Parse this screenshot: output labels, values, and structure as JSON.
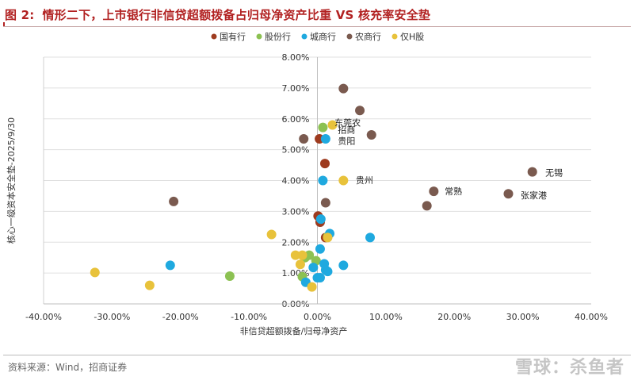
{
  "header": {
    "figure_num": "图 2:",
    "title": "情形二下，上市银行非信贷超额拨备占归母净资产比重 VS 核充率安全垫"
  },
  "footer": {
    "source": "资料来源：Wind，招商证券",
    "watermark": "雪球：杀鱼者"
  },
  "chart_data": {
    "type": "scatter",
    "title": "情形二下，上市银行非信贷超额拨备占归母净资产比重 VS 核充率安全垫",
    "xlabel": "非信贷超额拨备/归母净资产",
    "ylabel": "核心一级资本安全垫-2025/9/30",
    "xlim": [
      -0.4,
      0.4
    ],
    "ylim": [
      0.0,
      0.08
    ],
    "x_ticks": [
      "-40.00%",
      "-30.00%",
      "-20.00%",
      "-10.00%",
      "0.00%",
      "10.00%",
      "20.00%",
      "30.00%",
      "40.00%"
    ],
    "y_ticks": [
      "0.00%",
      "1.00%",
      "2.00%",
      "3.00%",
      "4.00%",
      "5.00%",
      "6.00%",
      "7.00%",
      "8.00%"
    ],
    "grid": "horizontal",
    "legend_position": "top",
    "series": [
      {
        "name": "国有行",
        "color": "#9e3b1f",
        "points": [
          [
            0.003,
            0.0535
          ],
          [
            0.011,
            0.0455
          ],
          [
            0.004,
            0.0265
          ],
          [
            0.012,
            0.0215
          ],
          [
            0.001,
            0.0285
          ]
        ]
      },
      {
        "name": "股份行",
        "color": "#8cc152",
        "points": [
          [
            0.008,
            0.0572
          ],
          [
            -0.128,
            0.009
          ],
          [
            -0.022,
            0.0088
          ],
          [
            -0.012,
            0.0158
          ],
          [
            -0.018,
            0.015
          ],
          [
            -0.002,
            0.014
          ],
          [
            0.015,
            0.0218
          ]
        ]
      },
      {
        "name": "城商行",
        "color": "#1fa9df",
        "points": [
          [
            0.012,
            0.0535
          ],
          [
            0.008,
            0.04
          ],
          [
            0.005,
            0.0275
          ],
          [
            0.018,
            0.0228
          ],
          [
            0.077,
            0.0215
          ],
          [
            -0.215,
            0.0125
          ],
          [
            0.004,
            0.0178
          ],
          [
            0.01,
            0.013
          ],
          [
            0.038,
            0.0125
          ],
          [
            -0.006,
            0.0118
          ],
          [
            0.012,
            0.011
          ],
          [
            0.015,
            0.0105
          ],
          [
            -0.017,
            0.007
          ],
          [
            0.0,
            0.0085
          ],
          [
            0.004,
            0.0085
          ]
        ]
      },
      {
        "name": "农商行",
        "color": "#7a5a4f",
        "points": [
          [
            0.038,
            0.0698
          ],
          [
            0.062,
            0.0627
          ],
          [
            0.079,
            0.0548
          ],
          [
            -0.02,
            0.0535
          ],
          [
            -0.21,
            0.0332
          ],
          [
            0.012,
            0.0328
          ],
          [
            0.314,
            0.0428
          ],
          [
            0.17,
            0.0365
          ],
          [
            0.279,
            0.0357
          ],
          [
            0.16,
            0.0318
          ]
        ]
      },
      {
        "name": "仅H股",
        "color": "#e8c23b",
        "points": [
          [
            0.022,
            0.058
          ],
          [
            0.038,
            0.04
          ],
          [
            -0.067,
            0.0225
          ],
          [
            0.015,
            0.0215
          ],
          [
            -0.022,
            0.0158
          ],
          [
            -0.032,
            0.0158
          ],
          [
            -0.025,
            0.0128
          ],
          [
            -0.325,
            0.0102
          ],
          [
            -0.245,
            0.006
          ],
          [
            -0.008,
            0.0055
          ]
        ]
      }
    ],
    "annotations": [
      {
        "text": "东莞农",
        "x": 0.025,
        "y": 0.0588
      },
      {
        "text": "招商",
        "x": 0.03,
        "y": 0.0564
      },
      {
        "text": "贵阳",
        "x": 0.03,
        "y": 0.0528
      },
      {
        "text": "贵州",
        "x": 0.056,
        "y": 0.0401
      },
      {
        "text": "无锡",
        "x": 0.333,
        "y": 0.0426
      },
      {
        "text": "常熟",
        "x": 0.186,
        "y": 0.0365
      },
      {
        "text": "张家港",
        "x": 0.297,
        "y": 0.0352
      }
    ]
  }
}
